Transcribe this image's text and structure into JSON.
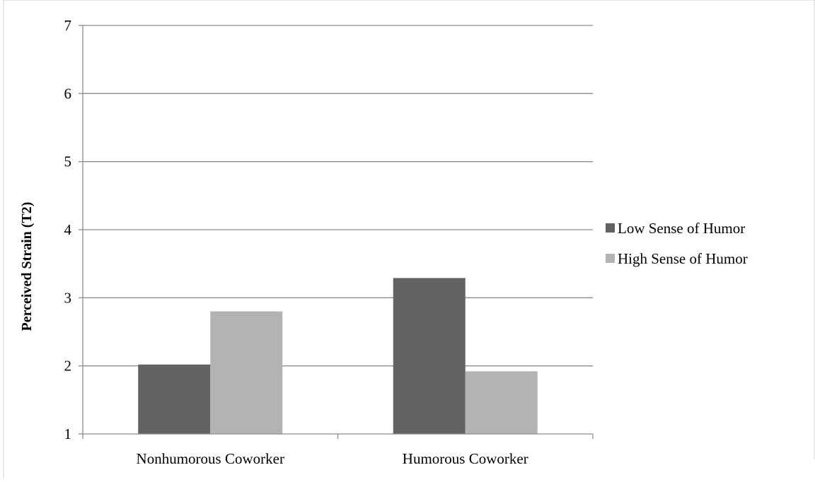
{
  "chart_data": {
    "type": "bar",
    "categories": [
      "Nonhumorous Coworker",
      "Humorous Coworker"
    ],
    "series": [
      {
        "name": "Low Sense of Humor",
        "values": [
          2.02,
          3.29
        ],
        "color": "#626262"
      },
      {
        "name": "High Sense of Humor",
        "values": [
          2.8,
          1.92
        ],
        "color": "#b3b3b3"
      }
    ],
    "xlabel": "",
    "ylabel": "Perceived Strain (T2)",
    "ylim": [
      1,
      7
    ],
    "yticks": [
      "1",
      "2",
      "3",
      "4",
      "5",
      "6",
      "7"
    ],
    "grid": true,
    "legend_position": "right",
    "gridline_color": "#8c8c8c",
    "axis_color": "#8c8c8c"
  }
}
